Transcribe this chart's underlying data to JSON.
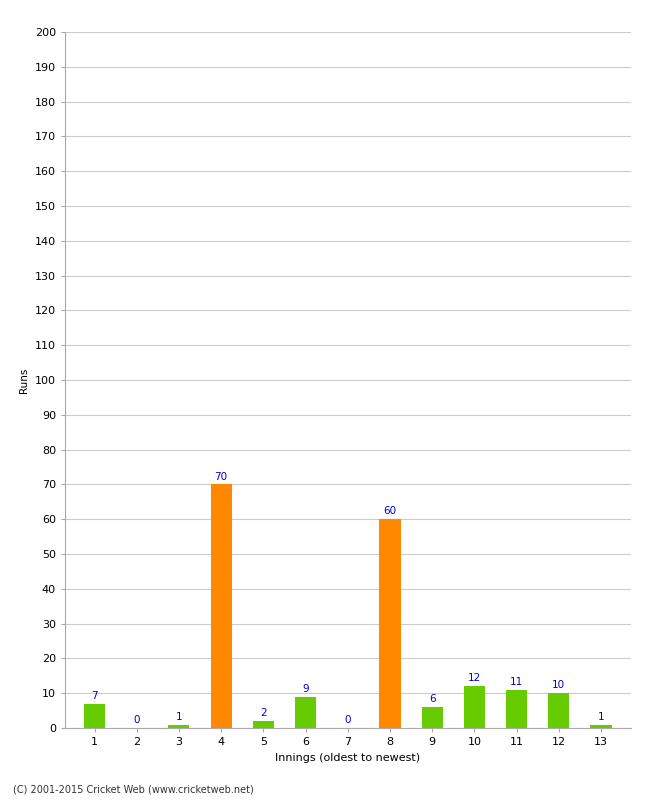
{
  "xlabel": "Innings (oldest to newest)",
  "ylabel": "Runs",
  "categories": [
    1,
    2,
    3,
    4,
    5,
    6,
    7,
    8,
    9,
    10,
    11,
    12,
    13
  ],
  "values": [
    7,
    0,
    1,
    70,
    2,
    9,
    0,
    60,
    6,
    12,
    11,
    10,
    1
  ],
  "bar_colors": [
    "#66cc00",
    "#66cc00",
    "#66cc00",
    "#ff8800",
    "#66cc00",
    "#66cc00",
    "#66cc00",
    "#ff8800",
    "#66cc00",
    "#66cc00",
    "#66cc00",
    "#66cc00",
    "#66cc00"
  ],
  "label_color": "#0000cc",
  "ylim": [
    0,
    200
  ],
  "yticks": [
    0,
    10,
    20,
    30,
    40,
    50,
    60,
    70,
    80,
    90,
    100,
    110,
    120,
    130,
    140,
    150,
    160,
    170,
    180,
    190,
    200
  ],
  "background_color": "#ffffff",
  "grid_color": "#cccccc",
  "footer": "(C) 2001-2015 Cricket Web (www.cricketweb.net)",
  "label_fontsize": 7.5,
  "axis_fontsize": 8,
  "ylabel_fontsize": 7.5,
  "bar_width": 0.5
}
